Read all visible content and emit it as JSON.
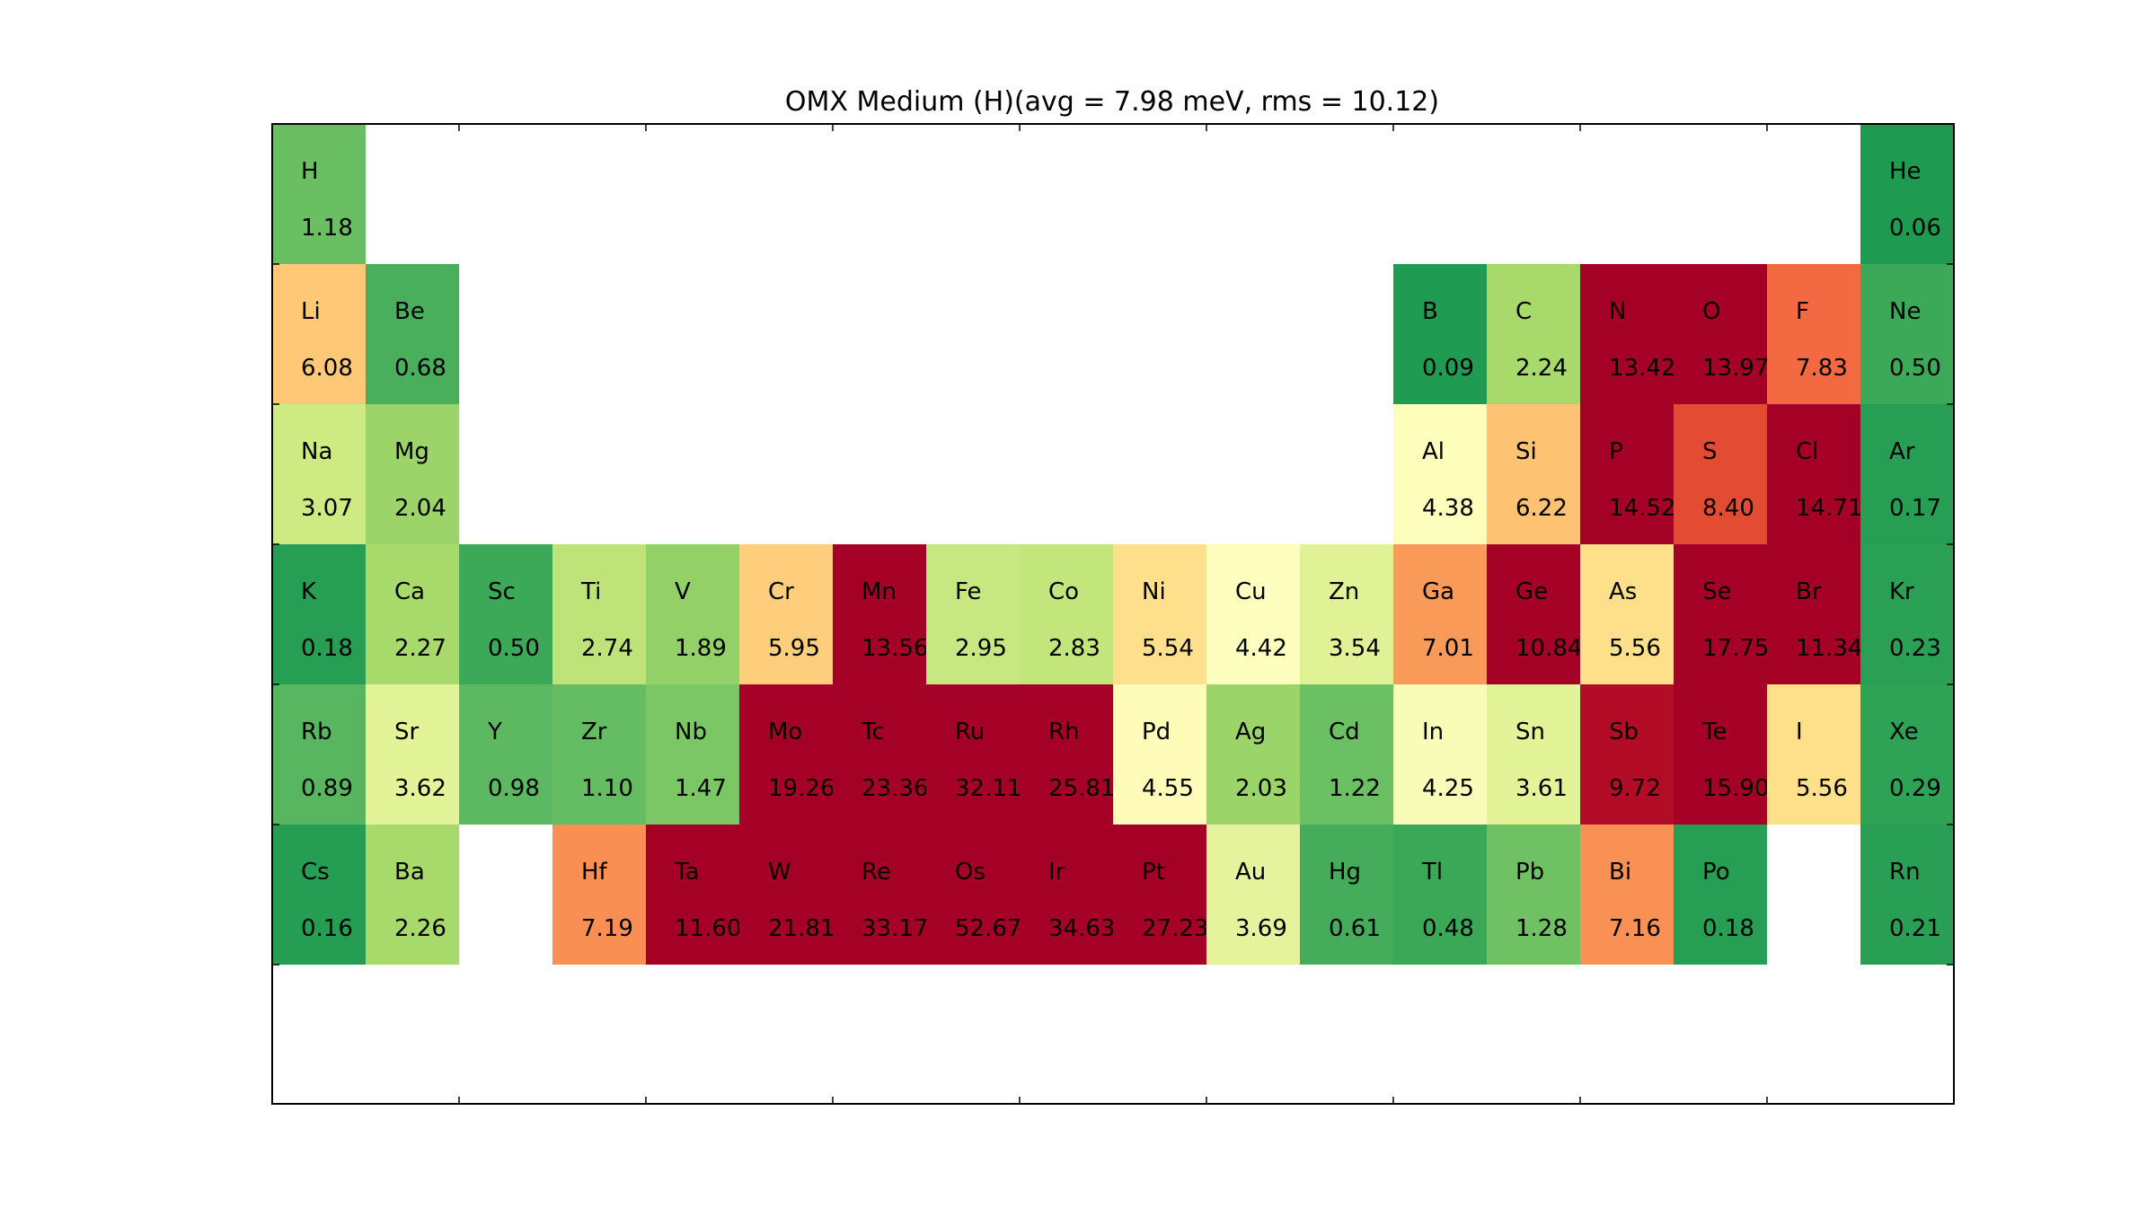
{
  "chart_data": {
    "type": "heatmap",
    "title": "OMX Medium (H)(avg = 7.98 meV, rms = 10.12)",
    "layout": "periodic-table",
    "grid": false,
    "color_scale": {
      "name": "RdYlGn_r",
      "vmin": 0,
      "vmax": 10
    },
    "elements": [
      {
        "symbol": "H",
        "value": 1.18,
        "row": 1,
        "group": 1
      },
      {
        "symbol": "He",
        "value": 0.06,
        "row": 1,
        "group": 18
      },
      {
        "symbol": "Li",
        "value": 6.08,
        "row": 2,
        "group": 1
      },
      {
        "symbol": "Be",
        "value": 0.68,
        "row": 2,
        "group": 2
      },
      {
        "symbol": "B",
        "value": 0.09,
        "row": 2,
        "group": 13
      },
      {
        "symbol": "C",
        "value": 2.24,
        "row": 2,
        "group": 14
      },
      {
        "symbol": "N",
        "value": 13.42,
        "row": 2,
        "group": 15
      },
      {
        "symbol": "O",
        "value": 13.97,
        "row": 2,
        "group": 16
      },
      {
        "symbol": "F",
        "value": 7.83,
        "row": 2,
        "group": 17
      },
      {
        "symbol": "Ne",
        "value": 0.5,
        "row": 2,
        "group": 18
      },
      {
        "symbol": "Na",
        "value": 3.07,
        "row": 3,
        "group": 1
      },
      {
        "symbol": "Mg",
        "value": 2.04,
        "row": 3,
        "group": 2
      },
      {
        "symbol": "Al",
        "value": 4.38,
        "row": 3,
        "group": 13
      },
      {
        "symbol": "Si",
        "value": 6.22,
        "row": 3,
        "group": 14
      },
      {
        "symbol": "P",
        "value": 14.52,
        "row": 3,
        "group": 15
      },
      {
        "symbol": "S",
        "value": 8.4,
        "row": 3,
        "group": 16
      },
      {
        "symbol": "Cl",
        "value": 14.71,
        "row": 3,
        "group": 17
      },
      {
        "symbol": "Ar",
        "value": 0.17,
        "row": 3,
        "group": 18
      },
      {
        "symbol": "K",
        "value": 0.18,
        "row": 4,
        "group": 1
      },
      {
        "symbol": "Ca",
        "value": 2.27,
        "row": 4,
        "group": 2
      },
      {
        "symbol": "Sc",
        "value": 0.5,
        "row": 4,
        "group": 3
      },
      {
        "symbol": "Ti",
        "value": 2.74,
        "row": 4,
        "group": 4
      },
      {
        "symbol": "V",
        "value": 1.89,
        "row": 4,
        "group": 5
      },
      {
        "symbol": "Cr",
        "value": 5.95,
        "row": 4,
        "group": 6
      },
      {
        "symbol": "Mn",
        "value": 13.56,
        "row": 4,
        "group": 7
      },
      {
        "symbol": "Fe",
        "value": 2.95,
        "row": 4,
        "group": 8
      },
      {
        "symbol": "Co",
        "value": 2.83,
        "row": 4,
        "group": 9
      },
      {
        "symbol": "Ni",
        "value": 5.54,
        "row": 4,
        "group": 10
      },
      {
        "symbol": "Cu",
        "value": 4.42,
        "row": 4,
        "group": 11
      },
      {
        "symbol": "Zn",
        "value": 3.54,
        "row": 4,
        "group": 12
      },
      {
        "symbol": "Ga",
        "value": 7.01,
        "row": 4,
        "group": 13
      },
      {
        "symbol": "Ge",
        "value": 10.84,
        "row": 4,
        "group": 14
      },
      {
        "symbol": "As",
        "value": 5.56,
        "row": 4,
        "group": 15
      },
      {
        "symbol": "Se",
        "value": 17.75,
        "row": 4,
        "group": 16
      },
      {
        "symbol": "Br",
        "value": 11.34,
        "row": 4,
        "group": 17
      },
      {
        "symbol": "Kr",
        "value": 0.23,
        "row": 4,
        "group": 18
      },
      {
        "symbol": "Rb",
        "value": 0.89,
        "row": 5,
        "group": 1
      },
      {
        "symbol": "Sr",
        "value": 3.62,
        "row": 5,
        "group": 2
      },
      {
        "symbol": "Y",
        "value": 0.98,
        "row": 5,
        "group": 3
      },
      {
        "symbol": "Zr",
        "value": 1.1,
        "row": 5,
        "group": 4
      },
      {
        "symbol": "Nb",
        "value": 1.47,
        "row": 5,
        "group": 5
      },
      {
        "symbol": "Mo",
        "value": 19.26,
        "row": 5,
        "group": 6
      },
      {
        "symbol": "Tc",
        "value": 23.36,
        "row": 5,
        "group": 7
      },
      {
        "symbol": "Ru",
        "value": 32.11,
        "row": 5,
        "group": 8
      },
      {
        "symbol": "Rh",
        "value": 25.81,
        "row": 5,
        "group": 9
      },
      {
        "symbol": "Pd",
        "value": 4.55,
        "row": 5,
        "group": 10
      },
      {
        "symbol": "Ag",
        "value": 2.03,
        "row": 5,
        "group": 11
      },
      {
        "symbol": "Cd",
        "value": 1.22,
        "row": 5,
        "group": 12
      },
      {
        "symbol": "In",
        "value": 4.25,
        "row": 5,
        "group": 13
      },
      {
        "symbol": "Sn",
        "value": 3.61,
        "row": 5,
        "group": 14
      },
      {
        "symbol": "Sb",
        "value": 9.72,
        "row": 5,
        "group": 15
      },
      {
        "symbol": "Te",
        "value": 15.9,
        "row": 5,
        "group": 16
      },
      {
        "symbol": "I",
        "value": 5.56,
        "row": 5,
        "group": 17
      },
      {
        "symbol": "Xe",
        "value": 0.29,
        "row": 5,
        "group": 18
      },
      {
        "symbol": "Cs",
        "value": 0.16,
        "row": 6,
        "group": 1
      },
      {
        "symbol": "Ba",
        "value": 2.26,
        "row": 6,
        "group": 2
      },
      {
        "symbol": "Hf",
        "value": 7.19,
        "row": 6,
        "group": 4
      },
      {
        "symbol": "Ta",
        "value": 11.6,
        "row": 6,
        "group": 5
      },
      {
        "symbol": "W",
        "value": 21.81,
        "row": 6,
        "group": 6
      },
      {
        "symbol": "Re",
        "value": 33.17,
        "row": 6,
        "group": 7
      },
      {
        "symbol": "Os",
        "value": 52.67,
        "row": 6,
        "group": 8
      },
      {
        "symbol": "Ir",
        "value": 34.63,
        "row": 6,
        "group": 9
      },
      {
        "symbol": "Pt",
        "value": 27.23,
        "row": 6,
        "group": 10
      },
      {
        "symbol": "Au",
        "value": 3.69,
        "row": 6,
        "group": 11
      },
      {
        "symbol": "Hg",
        "value": 0.61,
        "row": 6,
        "group": 12
      },
      {
        "symbol": "Tl",
        "value": 0.48,
        "row": 6,
        "group": 13
      },
      {
        "symbol": "Pb",
        "value": 1.28,
        "row": 6,
        "group": 14
      },
      {
        "symbol": "Bi",
        "value": 7.16,
        "row": 6,
        "group": 15
      },
      {
        "symbol": "Po",
        "value": 0.18,
        "row": 6,
        "group": 16
      },
      {
        "symbol": "Rn",
        "value": 0.21,
        "row": 6,
        "group": 18
      }
    ]
  }
}
